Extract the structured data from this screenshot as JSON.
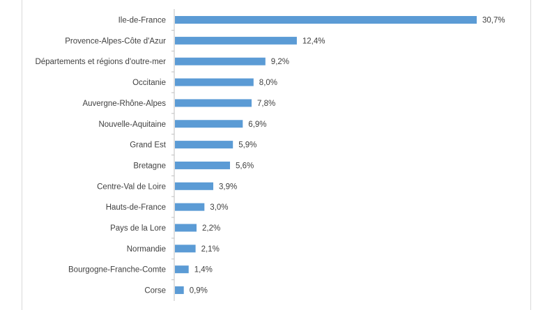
{
  "chart_data": {
    "type": "bar",
    "orientation": "horizontal",
    "categories": [
      "Ile-de-France",
      "Provence-Alpes-Côte d'Azur",
      "Départements et régions d'outre-mer",
      "Occitanie",
      "Auvergne-Rhône-Alpes",
      "Nouvelle-Aquitaine",
      "Grand Est",
      "Bretagne",
      "Centre-Val de Loire",
      "Hauts-de-France",
      "Pays de la Lore",
      "Normandie",
      "Bourgogne-Franche-Comte",
      "Corse"
    ],
    "values": [
      30.7,
      12.4,
      9.2,
      8.0,
      7.8,
      6.9,
      5.9,
      5.6,
      3.9,
      3.0,
      2.2,
      2.1,
      1.4,
      0.9
    ],
    "value_labels": [
      "30,7%",
      "12,4%",
      "9,2%",
      "8,0%",
      "7,8%",
      "6,9%",
      "5,9%",
      "5,6%",
      "3,9%",
      "3,0%",
      "2,2%",
      "2,1%",
      "1,4%",
      "0,9%"
    ],
    "unit": "%",
    "xlim": [
      0,
      30.7
    ],
    "grid": false,
    "legend": "none",
    "colors": {
      "bar": "#5b9bd5",
      "axis": "#bfbfbf",
      "text": "#404040",
      "frame": "#d9d9d9"
    }
  }
}
